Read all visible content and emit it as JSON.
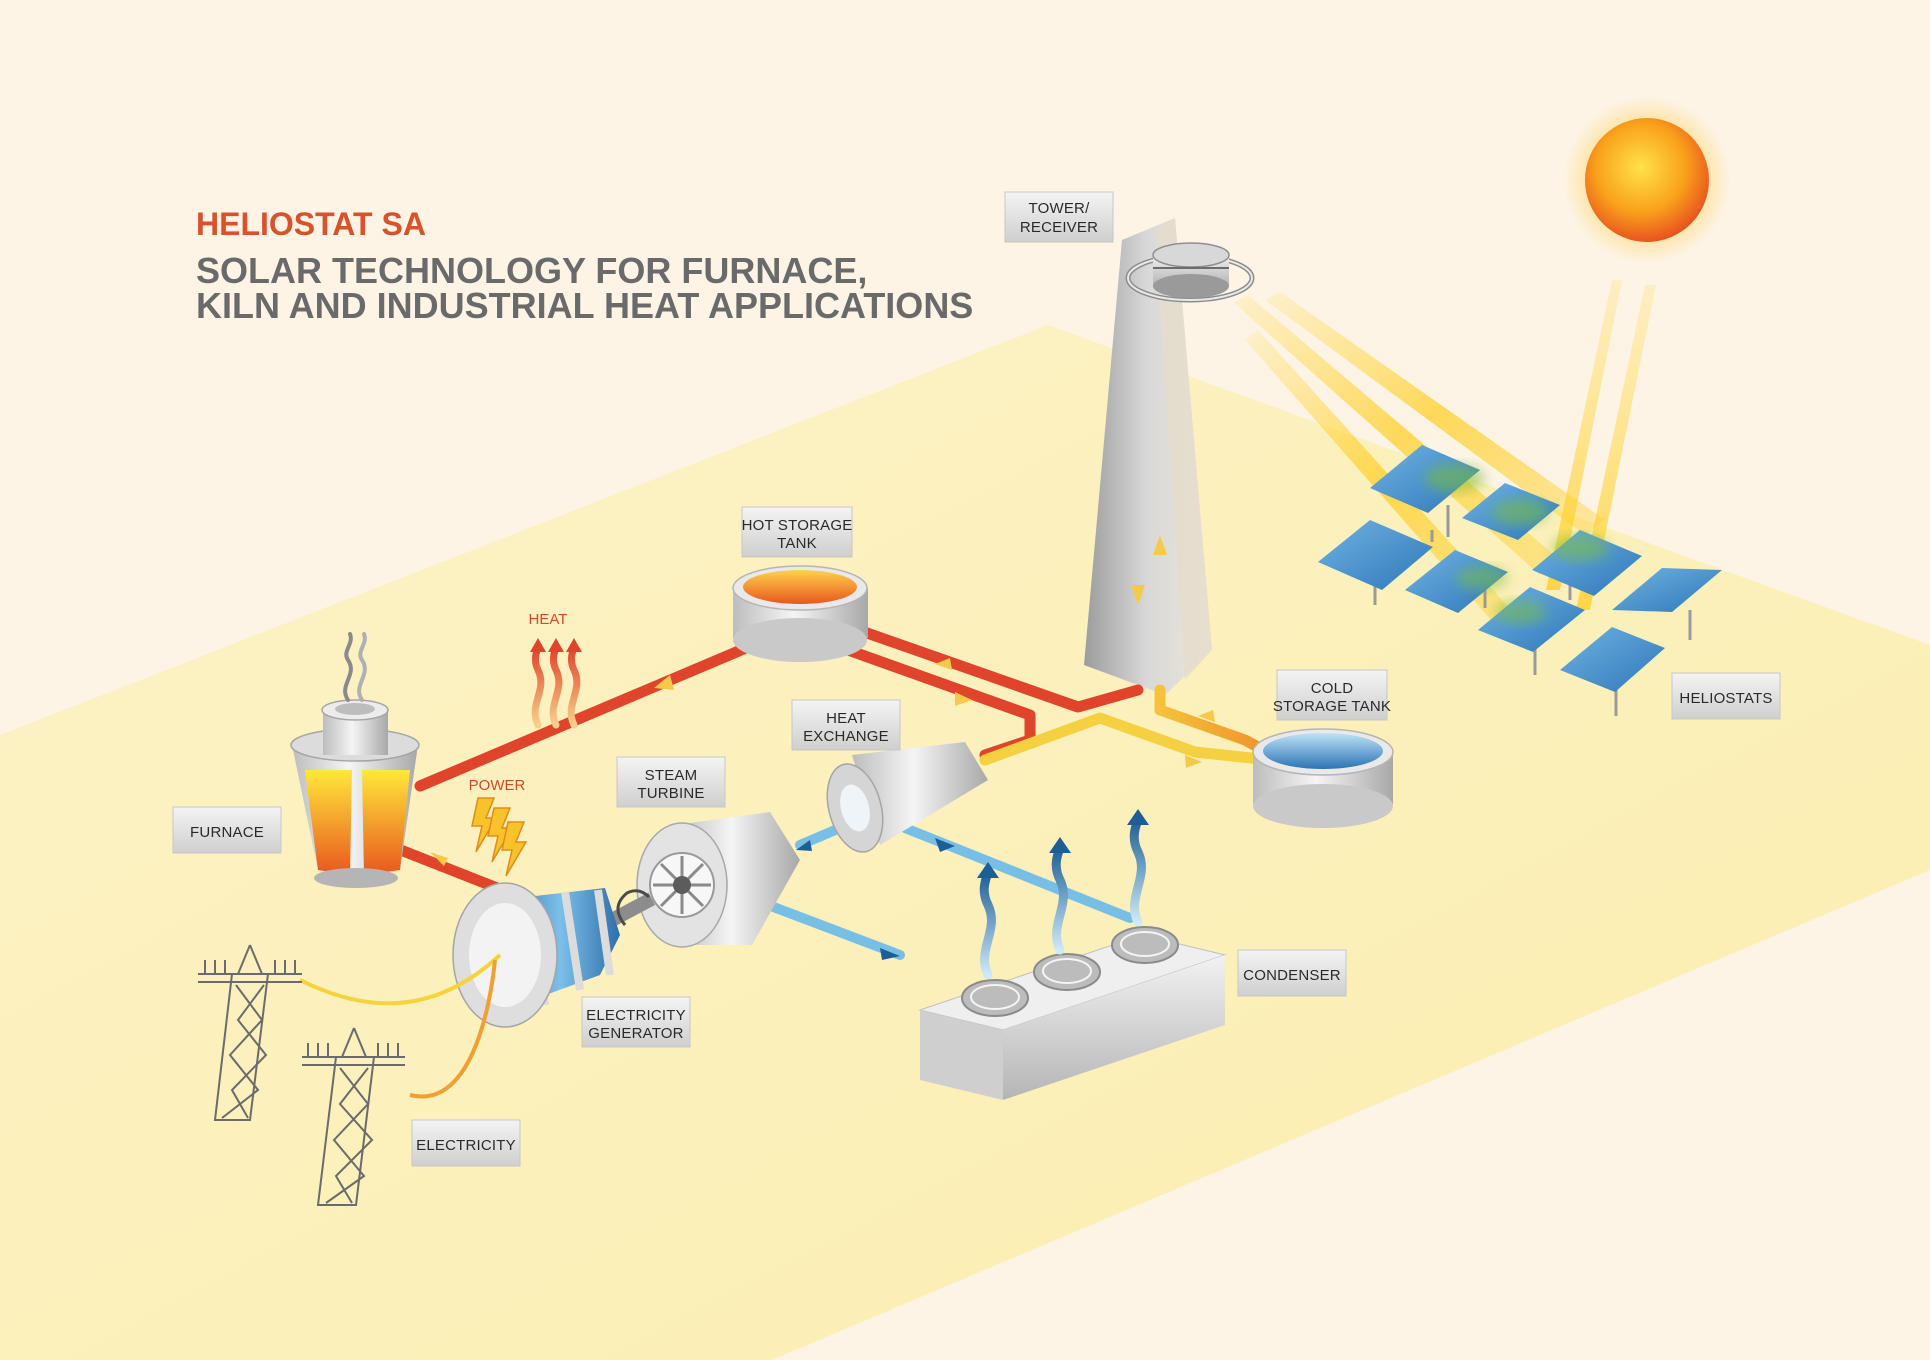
{
  "header": {
    "brand": "HELIOSTAT SA",
    "headline_line1": "SOLAR TECHNOLOGY FOR FURNACE,",
    "headline_line2": "KILN AND INDUSTRIAL HEAT APPLICATIONS"
  },
  "labels": {
    "tower_line1": "TOWER/",
    "tower_line2": "RECEIVER",
    "hot_tank_line1": "HOT STORAGE",
    "hot_tank_line2": "TANK",
    "cold_tank_line1": "COLD",
    "cold_tank_line2": "STORAGE TANK",
    "heliostats": "HELIOSTATS",
    "heat_exchange_line1": "HEAT",
    "heat_exchange_line2": "EXCHANGE",
    "steam_turbine_line1": "STEAM",
    "steam_turbine_line2": "TURBINE",
    "furnace": "FURNACE",
    "generator_line1": "ELECTRICITY",
    "generator_line2": "GENERATOR",
    "condenser": "CONDENSER",
    "electricity": "ELECTRICITY"
  },
  "annotations": {
    "heat": "HEAT",
    "power": "POWER"
  },
  "colors": {
    "background": "#fdf4e6",
    "ground": "#fbefb8",
    "brand": "#d8532b",
    "headline": "#6a6a6a",
    "hot_pipe": "#e0442a",
    "warm_pipe": "#f39a2c",
    "cool_pipe": "#f5d040",
    "water_pipe": "#78bfe6",
    "arrow_blue": "#1d5f95",
    "panel_blue": "#4a90cc"
  },
  "icons": {
    "sun": "sun-icon",
    "heat_arrows": "heat-wave-icon",
    "power_bolts": "lightning-bolt-icon",
    "steam_arrows": "steam-arrow-icon",
    "smoke": "smoke-icon",
    "pylon": "pylon-icon"
  }
}
